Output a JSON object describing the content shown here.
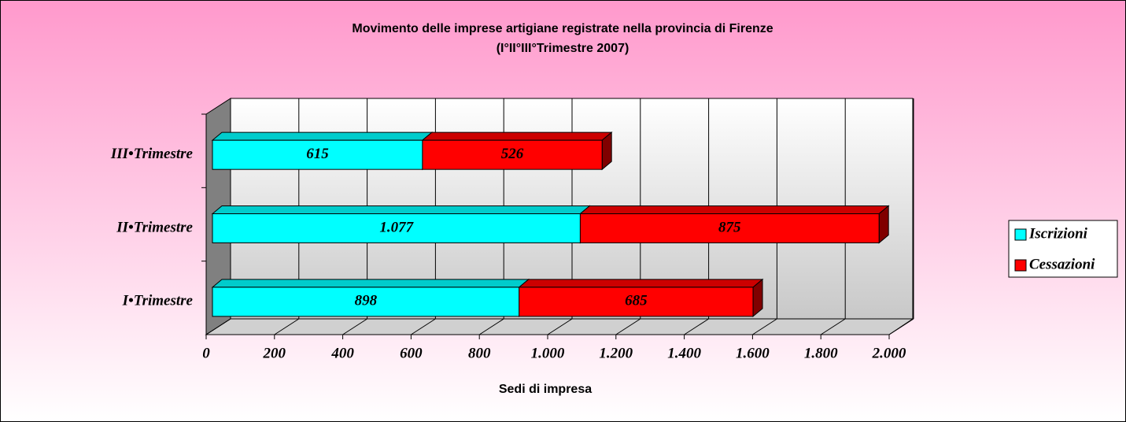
{
  "chart_data": {
    "type": "bar3d_stacked_horizontal",
    "title": "Movimento delle imprese artigiane registrate nella provincia di Firenze",
    "subtitle": "(I°II°III°Trimestre 2007)",
    "x_label": "Sedi di impresa",
    "categories": [
      "I•Trimestre",
      "II•Trimestre",
      "III•Trimestre"
    ],
    "series": [
      {
        "name": "Iscrizioni",
        "color": "#00ffff",
        "values": [
          898,
          1077,
          615
        ],
        "value_labels": [
          "898",
          "1.077",
          "615"
        ]
      },
      {
        "name": "Cessazioni",
        "color": "#ff0000",
        "values": [
          685,
          875,
          526
        ],
        "value_labels": [
          "685",
          "875",
          "526"
        ]
      }
    ],
    "xlim": [
      0,
      2000
    ],
    "xticks": [
      0,
      200,
      400,
      600,
      800,
      {
        "value": 1000,
        "label": "1.000"
      },
      {
        "value": 1200,
        "label": "1.200"
      },
      {
        "value": 1400,
        "label": "1.400"
      },
      {
        "value": 1600,
        "label": "1.600"
      },
      {
        "value": 1800,
        "label": "1.800"
      },
      {
        "value": 2000,
        "label": "2.000"
      }
    ],
    "grid": true,
    "legend": "right"
  }
}
